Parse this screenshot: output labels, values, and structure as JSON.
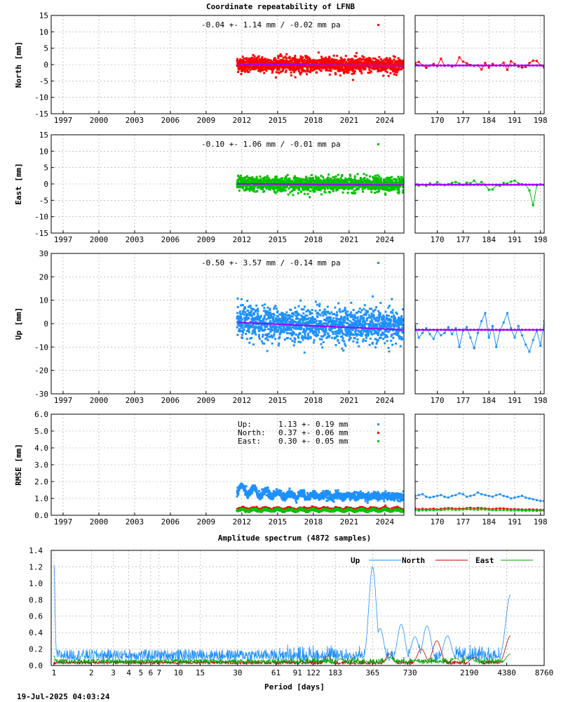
{
  "main_title": "Coordinate repeatability of LFNB",
  "spectrum_title": "Amplitude spectrum (4872 samples)",
  "timestamp": "19-Jul-2025 04:03:24",
  "colors": {
    "north": "#ff0000",
    "east": "#00c000",
    "up": "#1e90ff",
    "trend": "#a000ff",
    "spectrum_north": "#c00000",
    "spectrum_east": "#00a000"
  },
  "chart_data": [
    {
      "id": "north",
      "type": "scatter",
      "ylabel": "North [mm]",
      "ylim": [
        -15,
        15
      ],
      "yticks": [
        -15,
        -10,
        -5,
        0,
        5,
        10,
        15
      ],
      "xlim": [
        1996.0,
        2025.6
      ],
      "xticks": [
        1997,
        2000,
        2003,
        2006,
        2009,
        2012,
        2015,
        2018,
        2021,
        2024
      ],
      "annotation": "-0.04 +- 1.14 mm / -0.02 mm pa",
      "data_start": 2011.6,
      "data_end": 2025.55,
      "scatter_sigma": 1.14,
      "trend_offset": 0.1,
      "trend_rate": -0.02,
      "inset_xlim": [
        164,
        199
      ],
      "inset_xticks": [
        170,
        177,
        184,
        191,
        198
      ],
      "inset_values": [
        0.5,
        0.8,
        -0.2,
        -1.0,
        -0.3,
        0.2,
        -0.5,
        1.8,
        -0.4,
        -0.2,
        -0.6,
        -0.3,
        2.2,
        0.9,
        0.4,
        -0.1,
        -0.4,
        -0.2,
        -1.5,
        0.5,
        -0.9,
        0.2,
        -0.3,
        -0.2,
        0.6,
        -1.6,
        1.0,
        0.2,
        -0.6,
        -0.9,
        -0.7,
        0.5,
        1.2,
        1.1,
        -0.2,
        -0.9
      ]
    },
    {
      "id": "east",
      "type": "scatter",
      "ylabel": "East [mm]",
      "ylim": [
        -15,
        15
      ],
      "yticks": [
        -15,
        -10,
        -5,
        0,
        5,
        10,
        15
      ],
      "xlim": [
        1996.0,
        2025.6
      ],
      "xticks": [
        1997,
        2000,
        2003,
        2006,
        2009,
        2012,
        2015,
        2018,
        2021,
        2024
      ],
      "annotation": "-0.10 +- 1.06 mm / -0.01 mm pa",
      "data_start": 2011.6,
      "data_end": 2025.55,
      "scatter_sigma": 1.06,
      "trend_offset": 0.0,
      "trend_rate": -0.01,
      "inset_xlim": [
        164,
        199
      ],
      "inset_xticks": [
        170,
        177,
        184,
        191,
        198
      ],
      "inset_values": [
        -0.3,
        -0.5,
        -0.2,
        -0.6,
        0.2,
        -0.3,
        0.5,
        -0.2,
        -0.4,
        -0.1,
        0.3,
        0.6,
        0.1,
        -0.3,
        0.4,
        0.2,
        1.0,
        -0.2,
        0.6,
        -0.3,
        -1.8,
        -1.7,
        -0.4,
        -0.6,
        0.3,
        0.1,
        0.7,
        1.0,
        0.2,
        -0.1,
        -0.2,
        -2.0,
        -6.5,
        -0.4,
        -0.1,
        -0.3
      ]
    },
    {
      "id": "up",
      "type": "scatter",
      "ylabel": "Up [mm]",
      "ylim": [
        -30,
        30
      ],
      "yticks": [
        -30,
        -20,
        -10,
        0,
        10,
        20,
        30
      ],
      "xlim": [
        1996.0,
        2025.6
      ],
      "xticks": [
        1997,
        2000,
        2003,
        2006,
        2009,
        2012,
        2015,
        2018,
        2021,
        2024
      ],
      "annotation": "-0.50 +- 3.57 mm / -0.14 mm pa",
      "data_start": 2011.6,
      "data_end": 2025.55,
      "scatter_sigma": 3.57,
      "trend_offset": 0.5,
      "trend_rate": -0.14,
      "inset_xlim": [
        164,
        199
      ],
      "inset_xticks": [
        170,
        177,
        184,
        191,
        198
      ],
      "inset_values": [
        -1.0,
        -6.0,
        -4.0,
        -2.0,
        -4.5,
        -6.5,
        -3.0,
        -5.0,
        -4.0,
        -1.5,
        -4.5,
        -2.0,
        -10.0,
        -3.0,
        -1.5,
        -6.0,
        -10.5,
        -4.0,
        1.0,
        4.5,
        -6.0,
        -1.0,
        -10.0,
        -3.0,
        0.5,
        4.5,
        -2.0,
        -6.0,
        -1.0,
        -5.0,
        -9.0,
        -12.0,
        -7.0,
        -3.0,
        -9.5,
        1.0
      ]
    },
    {
      "id": "rmse",
      "type": "scatter",
      "ylabel": "RMSE [mm]",
      "ylim": [
        0,
        6
      ],
      "yticks": [
        "0.0",
        "1.0",
        "2.0",
        "3.0",
        "4.0",
        "5.0",
        "6.0"
      ],
      "xlim": [
        1996.0,
        2025.6
      ],
      "xticks": [
        1997,
        2000,
        2003,
        2006,
        2009,
        2012,
        2015,
        2018,
        2021,
        2024
      ],
      "legend": [
        {
          "label": "Up:",
          "value": "1.13 +- 0.19 mm",
          "series": "up"
        },
        {
          "label": "North:",
          "value": "0.37 +- 0.06 mm",
          "series": "north"
        },
        {
          "label": "East:",
          "value": "0.30 +- 0.05 mm",
          "series": "east"
        }
      ],
      "data_start": 2011.6,
      "data_end": 2025.55,
      "series": [
        {
          "name": "Up",
          "mean": 1.13,
          "sigma": 0.19
        },
        {
          "name": "North",
          "mean": 0.37,
          "sigma": 0.06
        },
        {
          "name": "East",
          "mean": 0.3,
          "sigma": 0.05
        }
      ],
      "inset_xlim": [
        164,
        199
      ],
      "inset_xticks": [
        170,
        177,
        184,
        191,
        198
      ],
      "inset_up": [
        1.15,
        1.2,
        1.25,
        1.1,
        1.05,
        1.1,
        1.15,
        1.2,
        1.1,
        1.05,
        1.15,
        1.2,
        1.3,
        1.25,
        1.1,
        1.15,
        1.2,
        1.35,
        1.25,
        1.2,
        1.15,
        1.1,
        1.2,
        1.25,
        1.15,
        1.1,
        1.0,
        1.05,
        1.1,
        1.15,
        1.05,
        1.0,
        0.95,
        0.9,
        0.85,
        0.85
      ],
      "inset_north": [
        0.4,
        0.35,
        0.38,
        0.36,
        0.37,
        0.39,
        0.35,
        0.38,
        0.4,
        0.42,
        0.41,
        0.38,
        0.4,
        0.39,
        0.42,
        0.44,
        0.4,
        0.43,
        0.42,
        0.4,
        0.38,
        0.37,
        0.39,
        0.41,
        0.4,
        0.38,
        0.36,
        0.37,
        0.35,
        0.34,
        0.33,
        0.35,
        0.34,
        0.33,
        0.32,
        0.33
      ],
      "inset_east": [
        0.3,
        0.28,
        0.3,
        0.29,
        0.31,
        0.3,
        0.32,
        0.31,
        0.33,
        0.35,
        0.34,
        0.32,
        0.33,
        0.34,
        0.36,
        0.35,
        0.34,
        0.33,
        0.35,
        0.34,
        0.32,
        0.31,
        0.3,
        0.32,
        0.31,
        0.3,
        0.29,
        0.28,
        0.29,
        0.28,
        0.27,
        0.28,
        0.27,
        0.26,
        0.27,
        0.28
      ]
    },
    {
      "id": "spectrum",
      "type": "line",
      "xlabel": "Period [days]",
      "ylim": [
        0,
        1.4
      ],
      "yticks": [
        "0.0",
        "0.2",
        "0.4",
        "0.6",
        "0.8",
        "1.0",
        "1.2",
        "1.4"
      ],
      "xlim_days": [
        0.95,
        8760
      ],
      "xticks": [
        1,
        2,
        3,
        4,
        5,
        6,
        7,
        10,
        15,
        30,
        61,
        91,
        122,
        183,
        365,
        730,
        2190,
        4380,
        8760
      ],
      "legend": [
        "Up",
        "North",
        "East"
      ],
      "series": [
        {
          "name": "Up",
          "peaks": [
            [
              1.0,
              1.22
            ],
            [
              1.02,
              0.38
            ],
            [
              365,
              1.2
            ],
            [
              400,
              0.3
            ],
            [
              420,
              0.45
            ],
            [
              620,
              0.5
            ],
            [
              800,
              0.35
            ],
            [
              1000,
              0.48
            ],
            [
              1460,
              0.36
            ],
            [
              4700,
              0.86
            ]
          ]
        },
        {
          "name": "North",
          "peaks": [
            [
              160,
              0.12
            ],
            [
              500,
              0.14
            ],
            [
              900,
              0.2
            ],
            [
              1200,
              0.3
            ],
            [
              2400,
              0.1
            ],
            [
              4700,
              0.36
            ]
          ]
        },
        {
          "name": "East",
          "peaks": [
            [
              1.0,
              0.12
            ],
            [
              200,
              0.08
            ],
            [
              500,
              0.1
            ],
            [
              800,
              0.06
            ],
            [
              1700,
              0.09
            ],
            [
              2200,
              0.1
            ],
            [
              4700,
              0.14
            ]
          ]
        }
      ]
    }
  ]
}
